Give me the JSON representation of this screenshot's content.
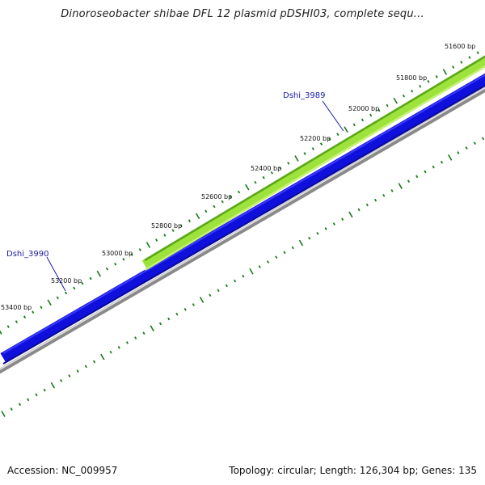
{
  "title": "Dinoroseobacter shibae DFL 12 plasmid pDSHI03, complete sequ...",
  "footer": {
    "accession": "Accession: NC_009957",
    "topology": "Topology: circular; Length: 126,304 bp; Genes: 135"
  },
  "ticks": [
    "51600 bp",
    "51800 bp",
    "52000 bp",
    "52200 bp",
    "52400 bp",
    "52600 bp",
    "52800 bp",
    "53000 bp",
    "53200 bp",
    "53400 bp"
  ],
  "genes": [
    "Dshi_3989",
    "Dshi_3990"
  ],
  "colors": {
    "gene_forward": "#9ee23c",
    "gene_forward_edge": "#5aa81a",
    "gene_reverse": "#1010dd",
    "backbone": "#888888",
    "tick": "#1a7a1a",
    "gene_label": "#1a1aaa"
  }
}
